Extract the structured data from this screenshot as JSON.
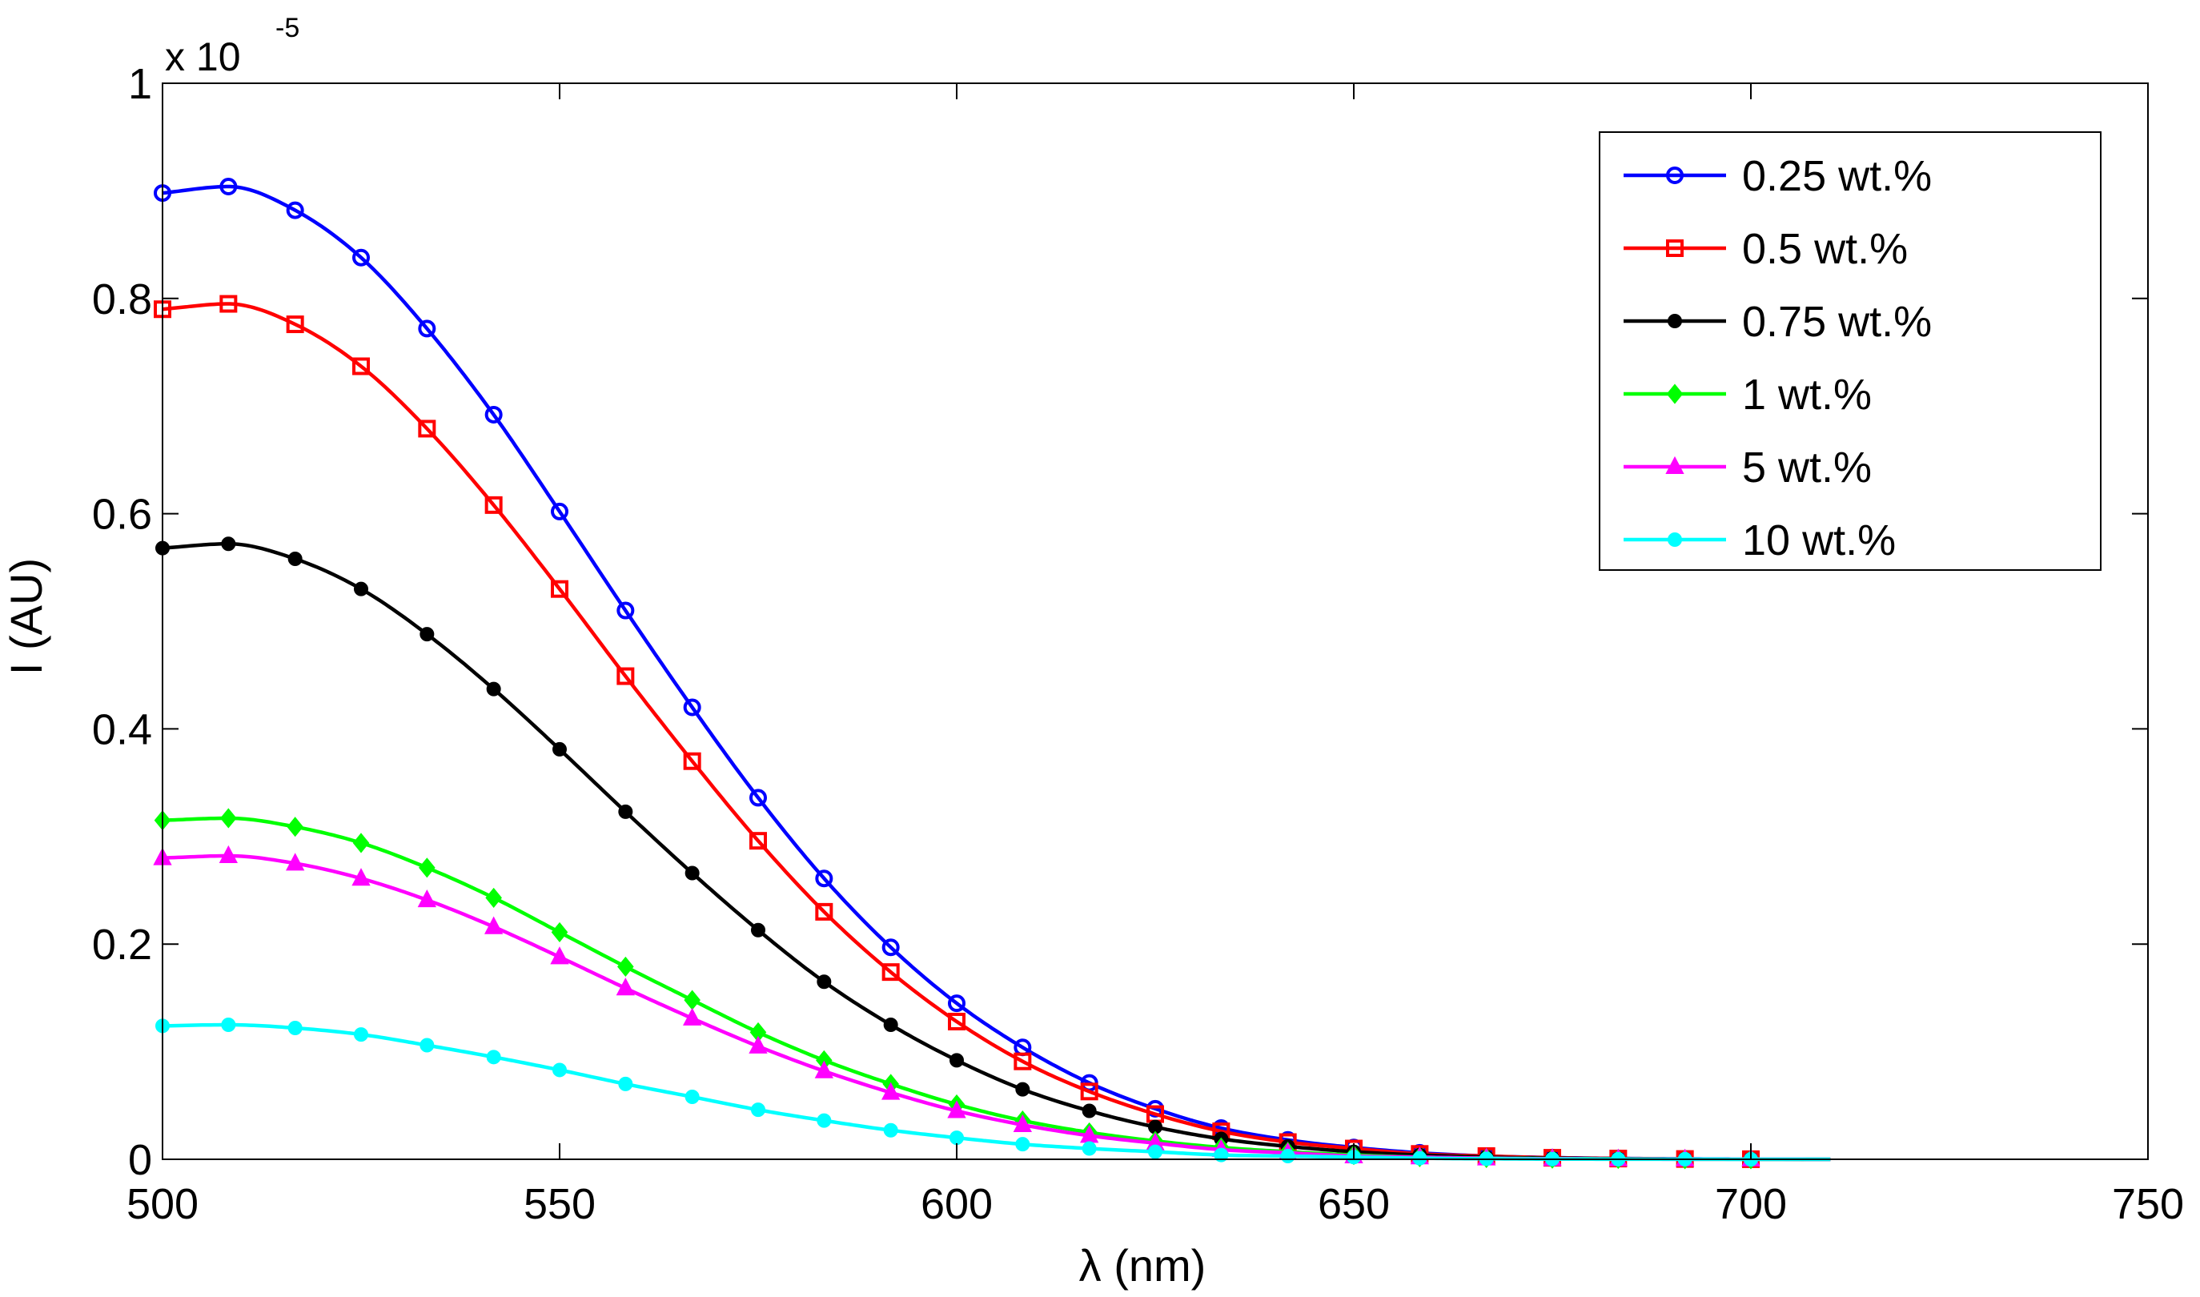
{
  "chart_data": {
    "type": "line",
    "title": "",
    "xlabel": "λ (nm)",
    "ylabel": "I (AU)",
    "y_multiplier": {
      "base": "x 10",
      "exponent": "-5"
    },
    "xlim": [
      500,
      750
    ],
    "ylim": [
      0,
      1
    ],
    "xticks": [
      500,
      550,
      600,
      650,
      700,
      750
    ],
    "xtick_labels": [
      "500",
      "550",
      "600",
      "650",
      "700",
      "750"
    ],
    "yticks": [
      0,
      0.2,
      0.4,
      0.6,
      0.8,
      1
    ],
    "ytick_labels": [
      "0",
      "0.2",
      "0.4",
      "0.6",
      "0.8",
      "1"
    ],
    "grid": false,
    "legend_position": "top-right",
    "marker_x": [
      500,
      508.3,
      516.7,
      525,
      533.3,
      541.7,
      550,
      558.3,
      566.7,
      575,
      583.3,
      591.7,
      600,
      608.3,
      616.7,
      625,
      633.3,
      641.7,
      650,
      658.3,
      666.7,
      675,
      683.3,
      691.7,
      700
    ],
    "line_end_x": 710,
    "series": [
      {
        "name": "0.25 wt.%",
        "color": "#0000ff",
        "marker": "circle",
        "values": [
          0.898,
          0.904,
          0.882,
          0.838,
          0.772,
          0.692,
          0.602,
          0.51,
          0.42,
          0.336,
          0.261,
          0.197,
          0.145,
          0.104,
          0.071,
          0.047,
          0.029,
          0.018,
          0.011,
          0.006,
          0.003,
          0.0016,
          0.0008,
          0.0004,
          0.0002
        ]
      },
      {
        "name": "0.5 wt.%",
        "color": "#ff0000",
        "marker": "square",
        "values": [
          0.79,
          0.795,
          0.776,
          0.737,
          0.679,
          0.608,
          0.53,
          0.449,
          0.37,
          0.296,
          0.23,
          0.174,
          0.128,
          0.091,
          0.063,
          0.042,
          0.026,
          0.016,
          0.01,
          0.005,
          0.003,
          0.0014,
          0.0007,
          0.0003,
          0.0001
        ]
      },
      {
        "name": "0.75 wt.%",
        "color": "#000000",
        "marker": "dot",
        "values": [
          0.568,
          0.572,
          0.558,
          0.53,
          0.488,
          0.437,
          0.381,
          0.323,
          0.266,
          0.213,
          0.165,
          0.125,
          0.092,
          0.065,
          0.045,
          0.03,
          0.019,
          0.012,
          0.007,
          0.004,
          0.002,
          0.001,
          0.0005,
          0.0002,
          0.0001
        ]
      },
      {
        "name": "1 wt.%",
        "color": "#00ff00",
        "marker": "diamond",
        "values": [
          0.315,
          0.317,
          0.309,
          0.294,
          0.271,
          0.243,
          0.211,
          0.179,
          0.148,
          0.118,
          0.092,
          0.07,
          0.051,
          0.036,
          0.025,
          0.017,
          0.011,
          0.007,
          0.004,
          0.002,
          0.0012,
          0.0006,
          0.0003,
          0.0001,
          0.0001
        ]
      },
      {
        "name": "5 wt.%",
        "color": "#ff00ff",
        "marker": "triangle",
        "values": [
          0.28,
          0.282,
          0.275,
          0.261,
          0.241,
          0.216,
          0.188,
          0.159,
          0.131,
          0.105,
          0.082,
          0.062,
          0.045,
          0.032,
          0.022,
          0.015,
          0.009,
          0.006,
          0.003,
          0.002,
          0.001,
          0.0005,
          0.0002,
          0.0001,
          0.0001
        ]
      },
      {
        "name": "10 wt.%",
        "color": "#00ffff",
        "marker": "dot",
        "values": [
          0.124,
          0.125,
          0.122,
          0.116,
          0.106,
          0.095,
          0.083,
          0.07,
          0.058,
          0.046,
          0.036,
          0.027,
          0.02,
          0.014,
          0.01,
          0.007,
          0.004,
          0.003,
          0.002,
          0.001,
          0.0005,
          0.0002,
          0.0001,
          0.0001,
          0
        ]
      }
    ]
  }
}
